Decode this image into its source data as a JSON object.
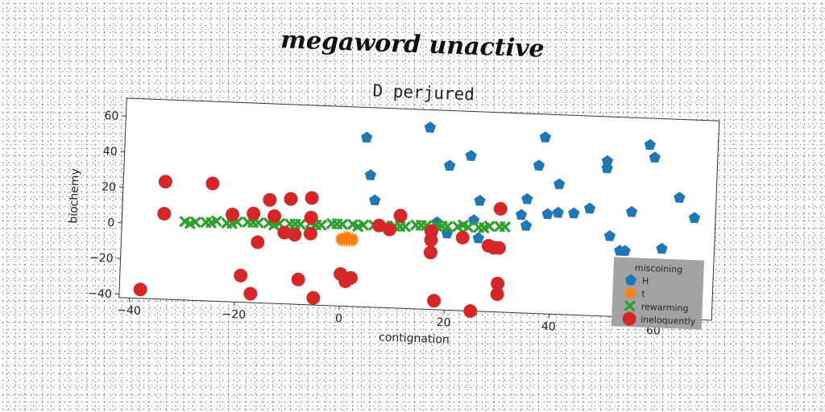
{
  "header": {
    "title": "megaword unactive"
  },
  "chart_data": {
    "type": "scatter",
    "title": "D perjured",
    "xlabel": "contignation",
    "ylabel": "biochemy",
    "xlim": [
      -42,
      71
    ],
    "ylim": [
      -42,
      70
    ],
    "xticks": [
      -40,
      -20,
      0,
      20,
      40,
      60
    ],
    "yticks": [
      -40,
      -20,
      0,
      20,
      40,
      60
    ],
    "grid": false,
    "legend": {
      "title": "miscoining",
      "placement": "bottom-right"
    },
    "series": [
      {
        "name": "H",
        "color": "#1f77b4",
        "marker": "pentagon",
        "points": [
          [
            4,
            53
          ],
          [
            16,
            60
          ],
          [
            5,
            32
          ],
          [
            20,
            39
          ],
          [
            24,
            45
          ],
          [
            6,
            18
          ],
          [
            26,
            20
          ],
          [
            18,
            7
          ],
          [
            20,
            1
          ],
          [
            25,
            9
          ],
          [
            26,
            -1
          ],
          [
            34,
            13
          ],
          [
            35,
            7
          ],
          [
            35,
            22
          ],
          [
            37,
            41
          ],
          [
            38,
            57
          ],
          [
            39,
            14
          ],
          [
            41,
            31
          ],
          [
            41,
            15
          ],
          [
            44,
            15
          ],
          [
            47,
            18
          ],
          [
            50,
            41
          ],
          [
            50,
            45
          ],
          [
            51,
            3
          ],
          [
            53,
            -5
          ],
          [
            54,
            -5
          ],
          [
            55,
            17
          ],
          [
            58,
            55
          ],
          [
            59,
            48
          ],
          [
            61,
            -3
          ],
          [
            64,
            26
          ],
          [
            67,
            15
          ]
        ]
      },
      {
        "name": "t",
        "color": "#ff7f0e",
        "marker": "star",
        "points": [
          [
            0,
            -4
          ],
          [
            1,
            -4
          ],
          [
            2,
            -4
          ],
          [
            0,
            -5
          ],
          [
            1,
            -5
          ],
          [
            2,
            -5
          ],
          [
            1,
            -3
          ]
        ]
      },
      {
        "name": "rewarming",
        "color": "#2ca02c",
        "marker": "x",
        "points": [
          [
            -30,
            2
          ],
          [
            -28,
            2
          ],
          [
            -26,
            2
          ],
          [
            -24,
            3
          ],
          [
            -22,
            2
          ],
          [
            -20,
            3
          ],
          [
            -18,
            3
          ],
          [
            -16,
            3
          ],
          [
            -14,
            3
          ],
          [
            -12,
            3
          ],
          [
            -10,
            3
          ],
          [
            -8,
            3
          ],
          [
            -6,
            4
          ],
          [
            -4,
            3
          ],
          [
            -2,
            4
          ],
          [
            0,
            4
          ],
          [
            2,
            4
          ],
          [
            4,
            4
          ],
          [
            6,
            4
          ],
          [
            8,
            4
          ],
          [
            10,
            4
          ],
          [
            12,
            4
          ],
          [
            14,
            5
          ],
          [
            16,
            5
          ],
          [
            18,
            5
          ],
          [
            20,
            5
          ],
          [
            22,
            5
          ],
          [
            24,
            5
          ],
          [
            26,
            5
          ],
          [
            28,
            6
          ],
          [
            30,
            6
          ],
          [
            31,
            6
          ],
          [
            -29,
            1
          ],
          [
            -25,
            2
          ],
          [
            -21,
            2
          ],
          [
            -17,
            3
          ],
          [
            -13,
            2
          ],
          [
            -9,
            3
          ],
          [
            -5,
            3
          ],
          [
            -1,
            4
          ],
          [
            3,
            3
          ],
          [
            7,
            4
          ],
          [
            11,
            4
          ],
          [
            15,
            5
          ],
          [
            19,
            5
          ],
          [
            23,
            6
          ],
          [
            27,
            5
          ]
        ]
      },
      {
        "name": "ineloquently",
        "color": "#d62728",
        "marker": "circle",
        "points": [
          [
            -34,
            24
          ],
          [
            -34,
            6
          ],
          [
            -25,
            24
          ],
          [
            -21,
            7
          ],
          [
            -17,
            8
          ],
          [
            -14,
            16
          ],
          [
            -13,
            7
          ],
          [
            -10,
            17
          ],
          [
            -6,
            18
          ],
          [
            -6,
            7
          ],
          [
            -16,
            -8
          ],
          [
            -11,
            -2
          ],
          [
            -9,
            -3
          ],
          [
            -6,
            -2
          ],
          [
            -19,
            -27
          ],
          [
            -17,
            -37
          ],
          [
            -8,
            -28
          ],
          [
            -5,
            -38
          ],
          [
            -38,
            -37
          ],
          [
            0,
            -24
          ],
          [
            1,
            -28
          ],
          [
            2,
            -26
          ],
          [
            7,
            4
          ],
          [
            9,
            2
          ],
          [
            11,
            10
          ],
          [
            17,
            2
          ],
          [
            17,
            -3
          ],
          [
            17,
            -10
          ],
          [
            23,
            -1
          ],
          [
            28,
            -5
          ],
          [
            29,
            -6
          ],
          [
            30,
            -6
          ],
          [
            30,
            16
          ],
          [
            30,
            -26
          ],
          [
            30,
            -32
          ],
          [
            18,
            -37
          ],
          [
            25,
            -42
          ]
        ]
      }
    ]
  }
}
